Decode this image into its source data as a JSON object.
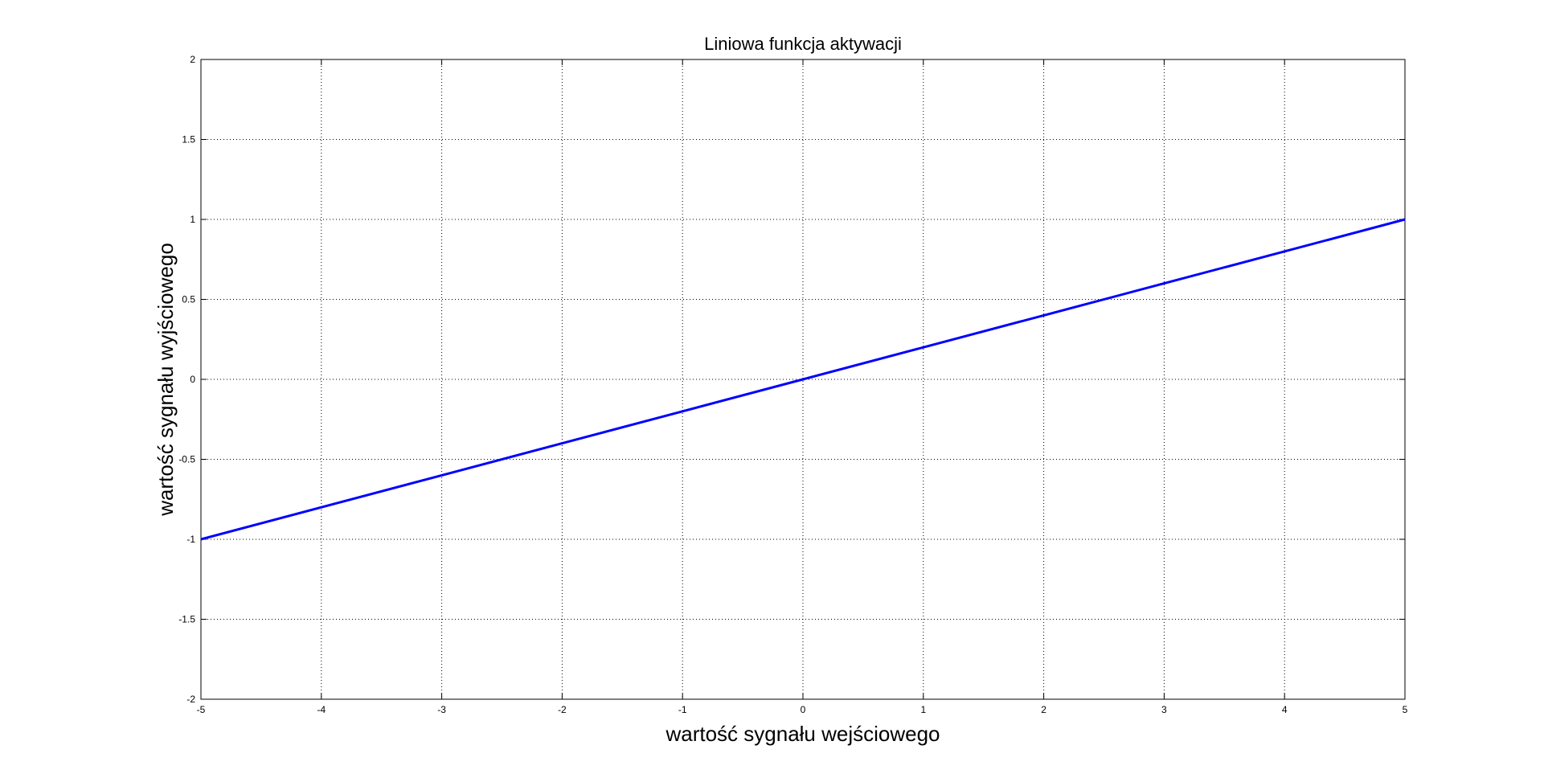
{
  "chart_data": {
    "type": "line",
    "title": "Liniowa funkcja aktywacji",
    "xlabel": "wartość sygnału wejściowego",
    "ylabel": "wartość sygnału wyjściowego",
    "xlim": [
      -5,
      5
    ],
    "ylim": [
      -2,
      2
    ],
    "x_ticks": [
      -5,
      -4,
      -3,
      -2,
      -1,
      0,
      1,
      2,
      3,
      4,
      5
    ],
    "y_ticks": [
      -2,
      -1.5,
      -1,
      -0.5,
      0,
      0.5,
      1,
      1.5,
      2
    ],
    "x_tick_labels": [
      "-5",
      "-4",
      "-3",
      "-2",
      "-1",
      "0",
      "1",
      "2",
      "3",
      "4",
      "5"
    ],
    "y_tick_labels": [
      "-2",
      "-1.5",
      "-1",
      "-0.5",
      "0",
      "0.5",
      "1",
      "1.5",
      "2"
    ],
    "grid": true,
    "grid_style": "dotted",
    "series": [
      {
        "x": [
          -5,
          -4,
          -3,
          -2,
          -1,
          0,
          1,
          2,
          3,
          4,
          5
        ],
        "y": [
          -1,
          -0.8,
          -0.6,
          -0.4,
          -0.2,
          0,
          0.2,
          0.4,
          0.6,
          0.8,
          1
        ],
        "color": "#0000ff"
      }
    ]
  }
}
